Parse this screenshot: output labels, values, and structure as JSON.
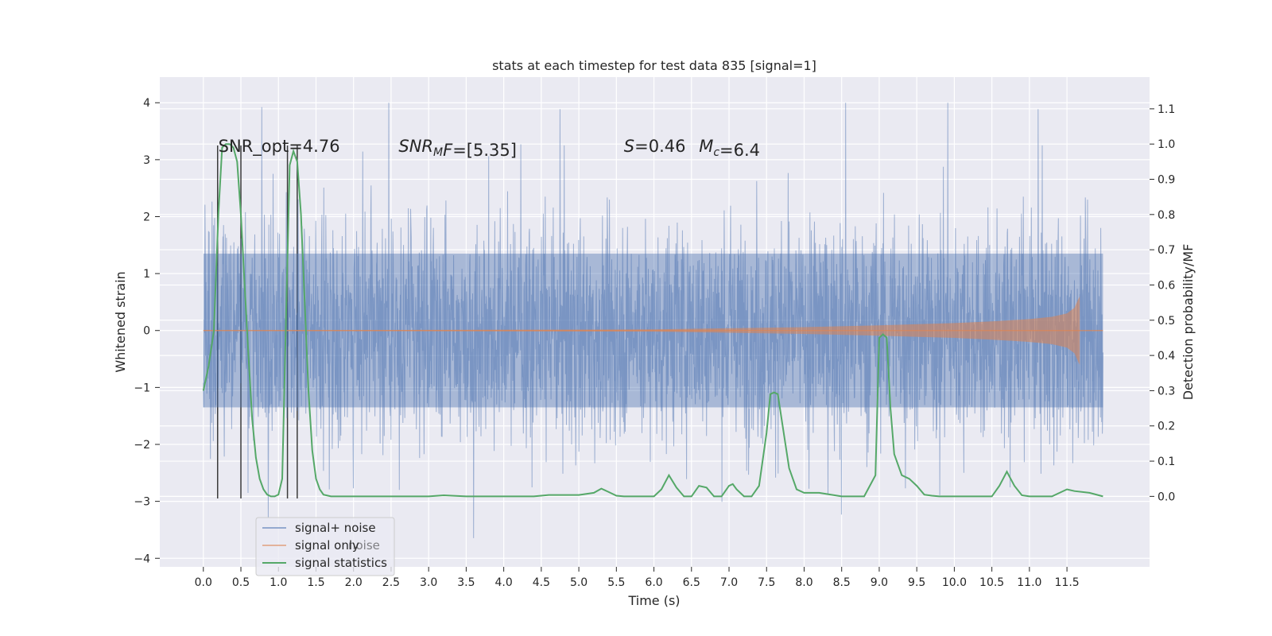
{
  "chart_data": {
    "type": "line",
    "title": "stats at each timestep for test data 835 [signal=1]",
    "xlabel": "Time (s)",
    "ylabel": "Whitened strain",
    "y2label": "Detection probability/MF",
    "xlim": [
      -0.58,
      12.6
    ],
    "ylim": [
      -4.15,
      4.45
    ],
    "y2lim": [
      -0.2,
      1.19
    ],
    "xticks": [
      0.0,
      0.5,
      1.0,
      1.5,
      2.0,
      2.5,
      3.0,
      3.5,
      4.0,
      4.5,
      5.0,
      5.5,
      6.0,
      6.5,
      7.0,
      7.5,
      8.0,
      8.5,
      9.0,
      9.5,
      10.0,
      10.5,
      11.0,
      11.5
    ],
    "xtick_labels": [
      "0.0",
      "0.5",
      "1.0",
      "1.5",
      "2.0",
      "2.5",
      "3.0",
      "3.5",
      "4.0",
      "4.5",
      "5.0",
      "5.5",
      "6.0",
      "6.5",
      "7.0",
      "7.5",
      "8.0",
      "8.5",
      "9.0",
      "9.5",
      "10.0",
      "10.5",
      "11.0",
      "11.5"
    ],
    "yticks": [
      -4,
      -3,
      -2,
      -1,
      0,
      1,
      2,
      3,
      4
    ],
    "ytick_labels": [
      "−4",
      "−3",
      "−2",
      "−1",
      "0",
      "1",
      "2",
      "3",
      "4"
    ],
    "y2ticks": [
      0.0,
      0.1,
      0.2,
      0.3,
      0.4,
      0.5,
      0.6,
      0.7,
      0.8,
      0.9,
      1.0,
      1.1
    ],
    "y2tick_labels": [
      "0.0",
      "0.1",
      "0.2",
      "0.3",
      "0.4",
      "0.5",
      "0.6",
      "0.7",
      "0.8",
      "0.9",
      "1.0",
      "1.1"
    ],
    "grid": true,
    "legend_position": "lower-left",
    "series": [
      {
        "name": "signal+ noise",
        "axis": "left",
        "color": "#4c72b0",
        "description": "dense whitened noise, approx. ±1.3 body with spikes up to about ±4 over 0–12 s"
      },
      {
        "name": "signal only",
        "axis": "left",
        "color": "#dd8452",
        "envelope": {
          "x": [
            0.0,
            6.0,
            7.0,
            8.0,
            9.0,
            10.0,
            10.5,
            11.0,
            11.3,
            11.5,
            11.6,
            11.65,
            11.67
          ],
          "amplitude": [
            0.003,
            0.02,
            0.04,
            0.06,
            0.09,
            0.13,
            0.16,
            0.2,
            0.24,
            0.3,
            0.4,
            0.55,
            0.6
          ]
        }
      },
      {
        "name": "signal statistics",
        "axis": "right",
        "color": "#55a868",
        "x": [
          0.0,
          0.07,
          0.14,
          0.2,
          0.25,
          0.3,
          0.35,
          0.4,
          0.45,
          0.5,
          0.55,
          0.6,
          0.65,
          0.7,
          0.75,
          0.8,
          0.85,
          0.9,
          0.95,
          1.0,
          1.05,
          1.1,
          1.15,
          1.2,
          1.25,
          1.3,
          1.35,
          1.4,
          1.45,
          1.5,
          1.55,
          1.6,
          1.7,
          1.8,
          2.0,
          2.5,
          3.0,
          3.2,
          3.5,
          4.0,
          4.4,
          4.6,
          5.0,
          5.2,
          5.3,
          5.4,
          5.5,
          5.6,
          5.8,
          6.0,
          6.1,
          6.2,
          6.3,
          6.4,
          6.5,
          6.6,
          6.7,
          6.8,
          6.9,
          7.0,
          7.05,
          7.1,
          7.2,
          7.3,
          7.4,
          7.5,
          7.55,
          7.6,
          7.65,
          7.7,
          7.8,
          7.9,
          8.0,
          8.2,
          8.5,
          8.8,
          8.95,
          9.0,
          9.05,
          9.1,
          9.15,
          9.2,
          9.3,
          9.4,
          9.5,
          9.6,
          9.7,
          9.8,
          10.0,
          10.2,
          10.5,
          10.6,
          10.7,
          10.8,
          10.9,
          11.0,
          11.3,
          11.5,
          11.6,
          11.8,
          11.98
        ],
        "values": [
          0.3,
          0.37,
          0.47,
          0.8,
          0.99,
          1.0,
          1.0,
          0.99,
          0.95,
          0.8,
          0.6,
          0.4,
          0.22,
          0.11,
          0.05,
          0.02,
          0.005,
          0.0,
          0.0,
          0.005,
          0.05,
          0.5,
          0.94,
          0.98,
          0.95,
          0.8,
          0.55,
          0.3,
          0.13,
          0.05,
          0.02,
          0.005,
          0.0,
          0.0,
          0.0,
          0.0,
          0.0,
          0.003,
          0.0,
          0.0,
          0.0,
          0.004,
          0.004,
          0.01,
          0.022,
          0.012,
          0.002,
          0.0,
          0.0,
          0.0,
          0.02,
          0.06,
          0.025,
          0.0,
          0.0,
          0.03,
          0.025,
          0.0,
          0.0,
          0.03,
          0.035,
          0.02,
          0.0,
          0.0,
          0.03,
          0.18,
          0.29,
          0.295,
          0.29,
          0.22,
          0.08,
          0.02,
          0.01,
          0.01,
          0.0,
          0.0,
          0.06,
          0.45,
          0.46,
          0.45,
          0.25,
          0.12,
          0.06,
          0.05,
          0.03,
          0.005,
          0.002,
          0.0,
          0.0,
          0.0,
          0.0,
          0.03,
          0.07,
          0.03,
          0.003,
          0.0,
          0.0,
          0.02,
          0.015,
          0.01,
          0.0
        ]
      }
    ],
    "vertical_lines": {
      "color": "#3a3a3a",
      "x": [
        0.19,
        0.5,
        1.12,
        1.25
      ],
      "y_range": [
        -2.95,
        3.25
      ]
    },
    "annotations": [
      {
        "parts": [
          {
            "t": "SNR_opt=4.76"
          }
        ],
        "x": 0.2,
        "y": 3.25
      },
      {
        "parts": [
          {
            "t": "SNR",
            "i": true
          },
          {
            "t": "M",
            "i": true,
            "sub": true
          },
          {
            "t": "F",
            "i": true
          },
          {
            "t": "=[5.35]"
          }
        ],
        "x": 2.6,
        "y": 3.25
      },
      {
        "parts": [
          {
            "t": "S",
            "i": true
          },
          {
            "t": "=0.46"
          }
        ],
        "x": 5.6,
        "y": 3.25
      },
      {
        "parts": [
          {
            "t": "M",
            "i": true
          },
          {
            "t": "c",
            "i": true,
            "sub": true
          },
          {
            "t": "=6.4"
          }
        ],
        "x": 6.6,
        "y": 3.25
      }
    ],
    "legend_entries": [
      "signal+ noise",
      "signal only",
      "signal statistics"
    ],
    "legend_ghost_text": "noise"
  }
}
